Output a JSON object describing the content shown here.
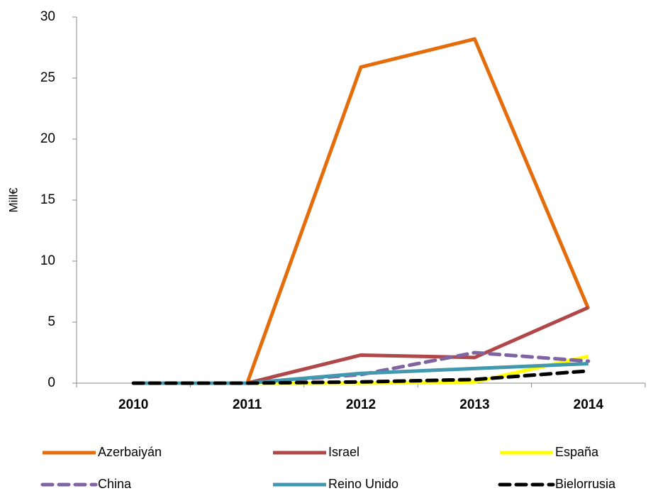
{
  "chart_data": {
    "type": "line",
    "y_label": "Mill€",
    "categories": [
      "2010",
      "2011",
      "2012",
      "2013",
      "2014"
    ],
    "series": [
      {
        "name": "Azerbaiyán",
        "color": "#e46c0a",
        "dashed": false,
        "values": [
          0,
          0,
          25.9,
          28.2,
          6.1
        ]
      },
      {
        "name": "Israel",
        "color": "#b0484a",
        "dashed": false,
        "values": [
          0,
          0,
          2.3,
          2.1,
          6.2
        ]
      },
      {
        "name": "España",
        "color": "#ffff00",
        "dashed": false,
        "values": [
          0,
          0,
          0,
          0.1,
          2.2
        ]
      },
      {
        "name": "China",
        "color": "#8064a2",
        "dashed": true,
        "values": [
          0,
          0,
          0.7,
          2.5,
          1.8
        ]
      },
      {
        "name": "Reino Unido",
        "color": "#4198af",
        "dashed": false,
        "values": [
          0,
          0,
          0.8,
          1.2,
          1.6
        ]
      },
      {
        "name": "Bielorrusia",
        "color": "#000000",
        "dashed": true,
        "values": [
          0,
          0,
          0.1,
          0.3,
          1.0
        ]
      }
    ],
    "ylim": [
      0,
      30
    ],
    "yticks": [
      0,
      5,
      10,
      15,
      20,
      25,
      30
    ],
    "grid": false,
    "legend": "bottom"
  }
}
